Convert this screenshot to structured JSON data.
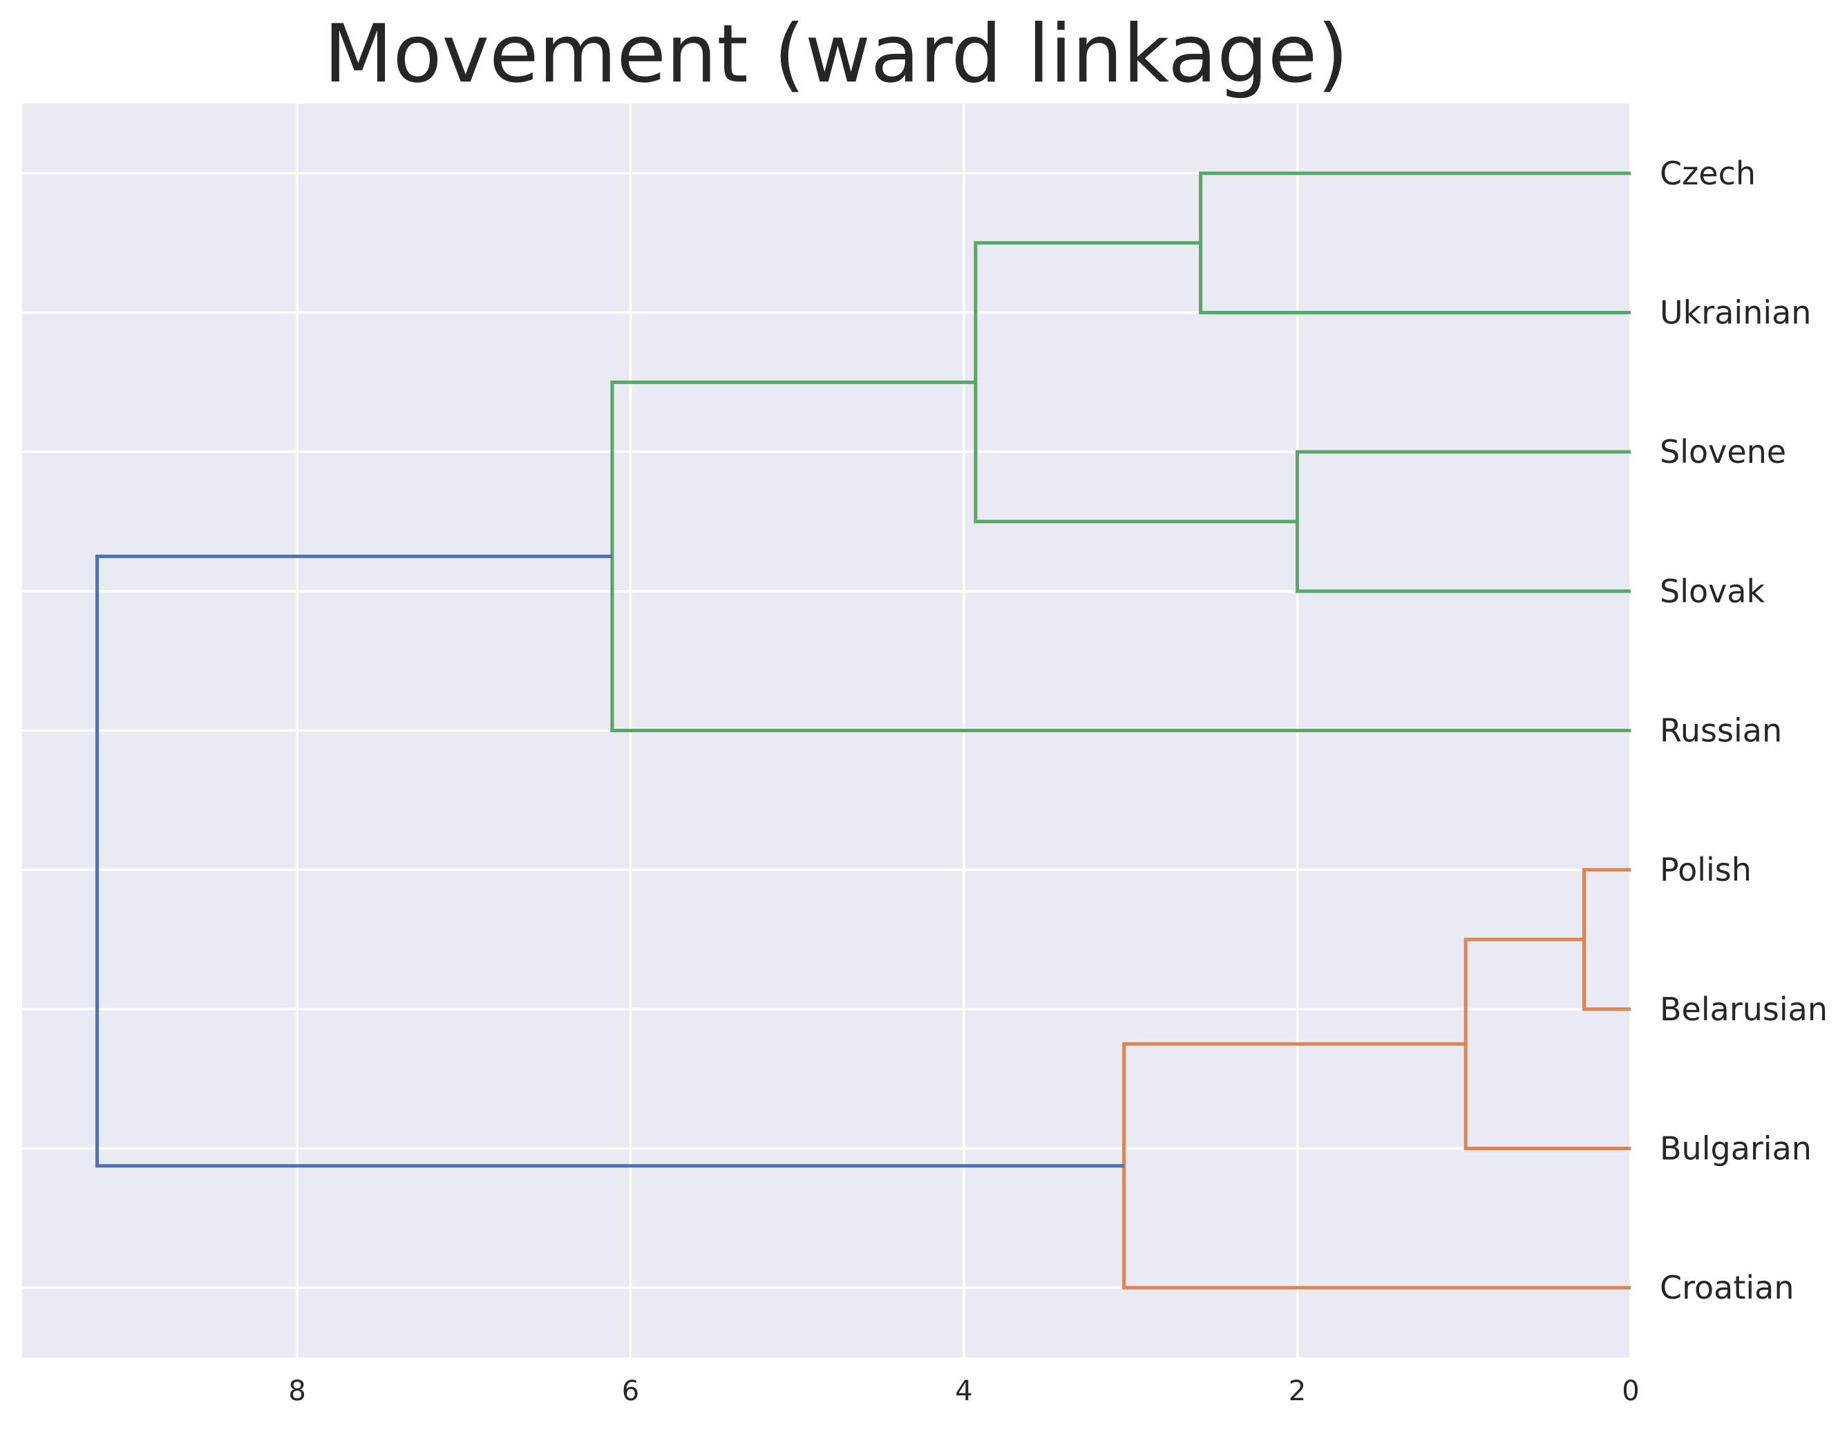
{
  "chart_data": {
    "type": "dendrogram",
    "title": "Movement (ward linkage)",
    "orientation": "left",
    "xlim": [
      9.65,
      0
    ],
    "x_ticks": [
      8,
      6,
      4,
      2,
      0
    ],
    "grid": true,
    "background": "#eaeaf2",
    "leaves": [
      "Czech",
      "Ukrainian",
      "Slovene",
      "Slovak",
      "Russian",
      "Polish",
      "Belarusian",
      "Bulgarian",
      "Croatian"
    ],
    "merges": [
      {
        "left": "Polish",
        "right": "Belarusian",
        "height": 0.28,
        "color": "#dd8452"
      },
      {
        "left": "Slovene",
        "right": "Slovak",
        "height": 2.0,
        "color": "#55a868"
      },
      {
        "left": "Czech",
        "right": "Ukrainian",
        "height": 2.58,
        "color": "#55a868"
      },
      {
        "left": "Polish+Belarusian",
        "right": "Bulgarian",
        "height": 0.99,
        "color": "#dd8452"
      },
      {
        "left": "Polish+Belarusian+Bulgarian",
        "right": "Croatian",
        "height": 3.04,
        "color": "#dd8452"
      },
      {
        "left": "Czech+Ukrainian",
        "right": "Slovene+Slovak",
        "height": 3.93,
        "color": "#55a868"
      },
      {
        "left": "Czech+Ukrainian+Slovene+Slovak",
        "right": "Russian",
        "height": 6.11,
        "color": "#55a868"
      },
      {
        "left": "Czech+Ukrainian+Slovene+Slovak+Russian",
        "right": "Polish+Belarusian+Bulgarian+Croatian",
        "height": 9.2,
        "color": "#4c72b0"
      }
    ]
  }
}
